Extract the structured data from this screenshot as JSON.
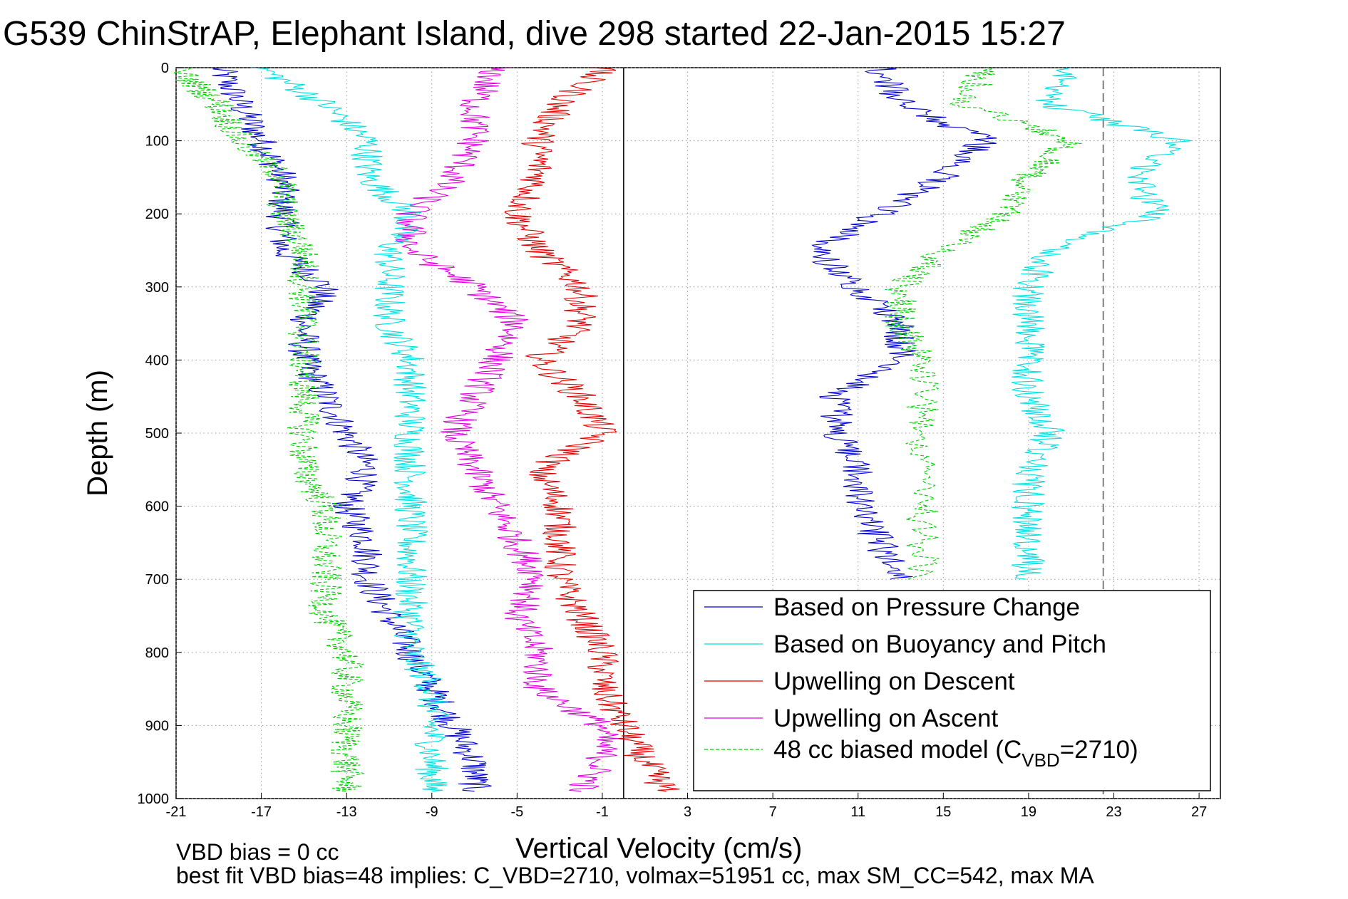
{
  "chart_data": {
    "type": "line",
    "title": "G539 ChinStrAP, Elephant Island, dive 298 started 22-Jan-2015 15:27",
    "xlabel": "Vertical Velocity (cm/s)",
    "ylabel": "Depth (m)",
    "xlim": [
      -21,
      28
    ],
    "ylim": [
      0,
      1000
    ],
    "y_reversed": true,
    "grid": true,
    "x_ticks": [
      -21,
      -17,
      -13,
      -9,
      -5,
      -1,
      3,
      7,
      11,
      15,
      19,
      23,
      27
    ],
    "y_ticks": [
      0,
      100,
      200,
      300,
      400,
      500,
      600,
      700,
      800,
      900,
      1000
    ],
    "reference_lines": [
      {
        "x": 0,
        "style": "solid",
        "color": "#000000"
      },
      {
        "x": 22.5,
        "style": "dashed",
        "color": "#555555"
      }
    ],
    "legend_position": "bottom-right",
    "legend": [
      {
        "label": "Based on Pressure Change",
        "color": "#0000cc",
        "dash": "solid"
      },
      {
        "label": "Based on Buoyancy and Pitch",
        "color": "#00e0e0",
        "dash": "solid"
      },
      {
        "label": "Upwelling on Descent",
        "color": "#e00000",
        "dash": "solid"
      },
      {
        "label": "Upwelling on Ascent",
        "color": "#e000e0",
        "dash": "solid"
      },
      {
        "label_main": "48 cc biased model (C",
        "label_sub": "VBD",
        "label_end": "=2710)",
        "color": "#00cc00",
        "dash": "dashed"
      }
    ],
    "series": [
      {
        "name": "Based on Pressure Change",
        "color": "#0000cc",
        "dash": "solid",
        "points": [
          [
            -19,
            0
          ],
          [
            -18,
            50
          ],
          [
            -17,
            100
          ],
          [
            -16,
            150
          ],
          [
            -16,
            200
          ],
          [
            -16,
            250
          ],
          [
            -14,
            300
          ],
          [
            -15,
            350
          ],
          [
            -15,
            400
          ],
          [
            -14,
            450
          ],
          [
            -13,
            500
          ],
          [
            -12,
            550
          ],
          [
            -13,
            600
          ],
          [
            -12,
            650
          ],
          [
            -12,
            700
          ],
          [
            -11,
            750
          ],
          [
            -10,
            800
          ],
          [
            -9,
            850
          ],
          [
            -8,
            900
          ],
          [
            -7,
            950
          ],
          [
            -7,
            990
          ]
        ],
        "points_ascent": [
          [
            13,
            700
          ],
          [
            12,
            650
          ],
          [
            11,
            600
          ],
          [
            11,
            550
          ],
          [
            10,
            500
          ],
          [
            10,
            450
          ],
          [
            13,
            400
          ],
          [
            13,
            350
          ],
          [
            11,
            300
          ],
          [
            9,
            250
          ],
          [
            12,
            200
          ],
          [
            15,
            150
          ],
          [
            17,
            100
          ],
          [
            13,
            50
          ],
          [
            12,
            0
          ]
        ]
      },
      {
        "name": "Based on Buoyancy and Pitch",
        "color": "#00e0e0",
        "dash": "solid",
        "points": [
          [
            -17,
            0
          ],
          [
            -14,
            50
          ],
          [
            -12,
            100
          ],
          [
            -12,
            150
          ],
          [
            -10,
            200
          ],
          [
            -11,
            250
          ],
          [
            -11,
            300
          ],
          [
            -11,
            350
          ],
          [
            -10,
            400
          ],
          [
            -10,
            450
          ],
          [
            -10,
            500
          ],
          [
            -10,
            550
          ],
          [
            -10,
            600
          ],
          [
            -10,
            650
          ],
          [
            -10,
            700
          ],
          [
            -10,
            750
          ],
          [
            -10,
            800
          ],
          [
            -9,
            850
          ],
          [
            -9,
            900
          ],
          [
            -9,
            950
          ],
          [
            -9,
            990
          ]
        ],
        "points_ascent": [
          [
            19,
            700
          ],
          [
            19,
            650
          ],
          [
            19,
            600
          ],
          [
            19,
            550
          ],
          [
            20,
            500
          ],
          [
            19,
            450
          ],
          [
            19,
            400
          ],
          [
            19,
            350
          ],
          [
            19,
            300
          ],
          [
            20,
            250
          ],
          [
            25,
            200
          ],
          [
            24,
            150
          ],
          [
            26,
            100
          ],
          [
            20,
            50
          ],
          [
            21,
            0
          ]
        ]
      },
      {
        "name": "Upwelling on Descent",
        "color": "#e00000",
        "dash": "solid",
        "points": [
          [
            -1,
            0
          ],
          [
            -3,
            50
          ],
          [
            -4,
            100
          ],
          [
            -4,
            150
          ],
          [
            -5,
            200
          ],
          [
            -4,
            250
          ],
          [
            -2,
            300
          ],
          [
            -2,
            350
          ],
          [
            -4,
            400
          ],
          [
            -2,
            450
          ],
          [
            -1,
            500
          ],
          [
            -4,
            550
          ],
          [
            -3,
            600
          ],
          [
            -3,
            650
          ],
          [
            -3,
            700
          ],
          [
            -2,
            750
          ],
          [
            -1,
            800
          ],
          [
            -1,
            850
          ],
          [
            0,
            900
          ],
          [
            1,
            950
          ],
          [
            2,
            990
          ]
        ]
      },
      {
        "name": "Upwelling on Ascent",
        "color": "#e000e0",
        "dash": "solid",
        "points": [
          [
            -6,
            0
          ],
          [
            -7,
            50
          ],
          [
            -7,
            100
          ],
          [
            -8,
            150
          ],
          [
            -10,
            200
          ],
          [
            -10,
            250
          ],
          [
            -7,
            300
          ],
          [
            -5,
            350
          ],
          [
            -6,
            400
          ],
          [
            -7,
            450
          ],
          [
            -8,
            500
          ],
          [
            -7,
            550
          ],
          [
            -6,
            600
          ],
          [
            -5,
            650
          ],
          [
            -4,
            700
          ],
          [
            -5,
            750
          ],
          [
            -4,
            800
          ],
          [
            -4,
            850
          ],
          [
            -1,
            900
          ],
          [
            -1,
            950
          ],
          [
            -2,
            990
          ]
        ]
      },
      {
        "name": "48 cc biased model (CVBD=2710)",
        "color": "#00cc00",
        "dash": "dashed",
        "points": [
          [
            -21,
            0
          ],
          [
            -19,
            50
          ],
          [
            -18,
            100
          ],
          [
            -16,
            150
          ],
          [
            -16,
            200
          ],
          [
            -15,
            250
          ],
          [
            -15,
            300
          ],
          [
            -15,
            350
          ],
          [
            -15,
            400
          ],
          [
            -15,
            450
          ],
          [
            -15,
            500
          ],
          [
            -15,
            550
          ],
          [
            -14,
            600
          ],
          [
            -14,
            650
          ],
          [
            -14,
            700
          ],
          [
            -14,
            750
          ],
          [
            -13,
            800
          ],
          [
            -13,
            850
          ],
          [
            -13,
            900
          ],
          [
            -13,
            950
          ],
          [
            -13,
            990
          ]
        ],
        "points_ascent": [
          [
            14,
            700
          ],
          [
            14,
            600
          ],
          [
            14,
            500
          ],
          [
            14,
            400
          ],
          [
            13,
            350
          ],
          [
            13,
            300
          ],
          [
            15,
            250
          ],
          [
            18,
            200
          ],
          [
            19,
            150
          ],
          [
            21,
            100
          ],
          [
            16,
            50
          ],
          [
            17,
            0
          ]
        ]
      }
    ]
  },
  "footer": {
    "line1": "VBD bias = 0 cc",
    "line2": "best fit VBD bias=48 implies: C_VBD=2710, volmax=51951 cc, max SM_CC=542, max MA"
  }
}
